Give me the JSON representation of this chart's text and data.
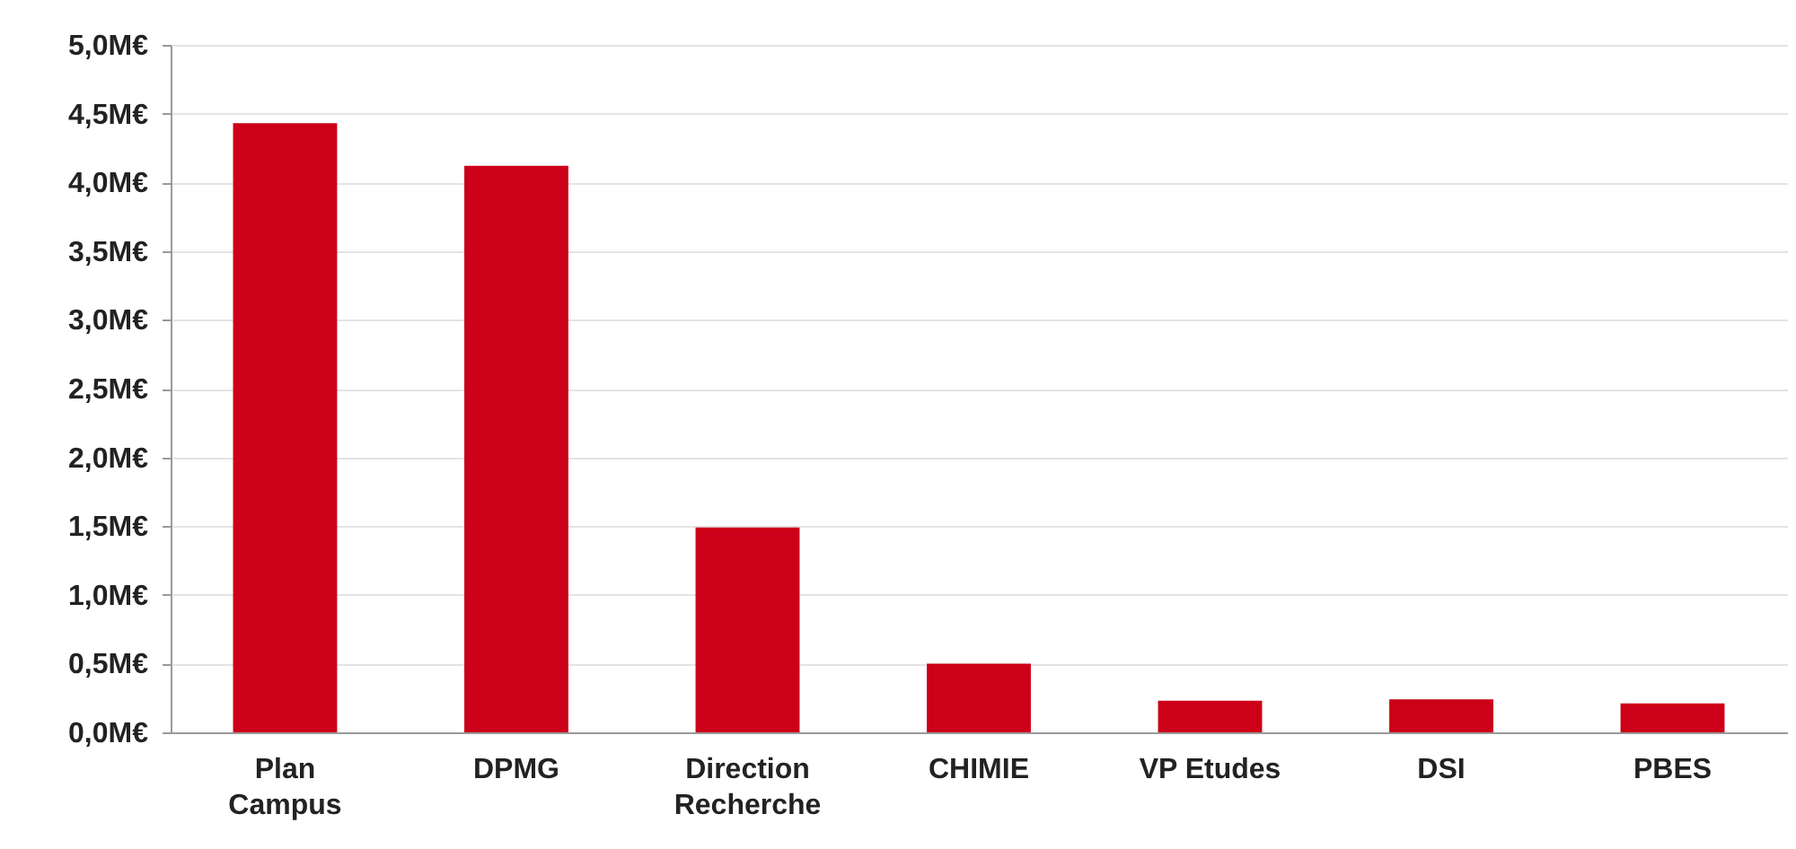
{
  "chart_data": {
    "type": "bar",
    "categories": [
      "Plan Campus",
      "DPMG",
      "Direction Recherche",
      "CHIMIE",
      "VP Etudes",
      "DSI",
      "PBES"
    ],
    "values": [
      4.43,
      4.12,
      1.49,
      0.5,
      0.23,
      0.24,
      0.21
    ],
    "color": "#cc0018",
    "ylim": [
      0,
      5
    ],
    "yticks": [
      {
        "value": 0,
        "label": "0,0M€"
      },
      {
        "value": 0.5,
        "label": "0,5M€"
      },
      {
        "value": 1,
        "label": "1,0M€"
      },
      {
        "value": 1.5,
        "label": "1,5M€"
      },
      {
        "value": 2,
        "label": "2,0M€"
      },
      {
        "value": 2.5,
        "label": "2,5M€"
      },
      {
        "value": 3,
        "label": "3,0M€"
      },
      {
        "value": 3.5,
        "label": "3,5M€"
      },
      {
        "value": 4,
        "label": "4,0M€"
      },
      {
        "value": 4.5,
        "label": "4,5M€"
      },
      {
        "value": 5,
        "label": "5,0M€"
      }
    ],
    "grid": "y"
  }
}
